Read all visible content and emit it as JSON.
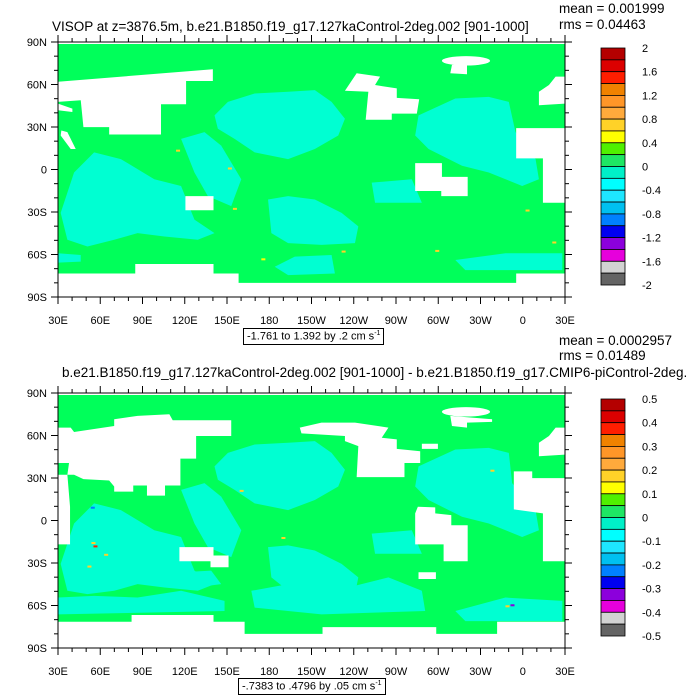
{
  "colors": {
    "ocean_zero": "#00ff5a",
    "ocean_negative": "#00ffd2",
    "land_mask": "#ffffff",
    "frame": "#000000"
  },
  "axes": {
    "lat_labels": [
      "90N",
      "60N",
      "30N",
      "0",
      "30S",
      "60S",
      "90S"
    ],
    "lon_labels": [
      "30E",
      "60E",
      "90E",
      "120E",
      "150E",
      "180",
      "150W",
      "120W",
      "90W",
      "60W",
      "30W",
      "0",
      "30E"
    ]
  },
  "colorbar_colors": [
    "#b40000",
    "#dc0000",
    "#ff1e00",
    "#f08200",
    "#ff9628",
    "#ffaa3c",
    "#ffd228",
    "#ffff00",
    "#50f000",
    "#1ee664",
    "#00f0c8",
    "#00ffff",
    "#1ee6ff",
    "#00c0f0",
    "#0080ff",
    "#0000f0",
    "#8c00dc",
    "#e600dc",
    "#d2d2d2",
    "#646464"
  ],
  "panels": [
    {
      "title": "VISOP at z=3876.5m, b.e21.B1850.f19_g17.127kaControl-2deg.002 [901-1000]",
      "mean": "mean = 0.001999",
      "rms": "rms = 0.04463",
      "summary": "-1.761 to 1.392 by .2 cm s",
      "summary_unit_exp": "-1",
      "colorbar_labels": [
        "2",
        "1.6",
        "1.2",
        "0.8",
        "0.4",
        "0",
        "-0.4",
        "-0.8",
        "-1.2",
        "-1.6",
        "-2"
      ]
    },
    {
      "title": "b.e21.B1850.f19_g17.127kaControl-2deg.002 [901-1000] - b.e21.B1850.f19_g17.CMIP6-piControl-2deg.",
      "mean": "mean = 0.0002957",
      "rms": "rms = 0.01489",
      "summary": "-.7383 to .4796 by .05 cm s",
      "summary_unit_exp": "-1",
      "colorbar_labels": [
        "0.5",
        "0.4",
        "0.3",
        "0.2",
        "0.1",
        "0",
        "-0.1",
        "-0.2",
        "-0.3",
        "-0.4",
        "-0.5"
      ]
    }
  ]
}
